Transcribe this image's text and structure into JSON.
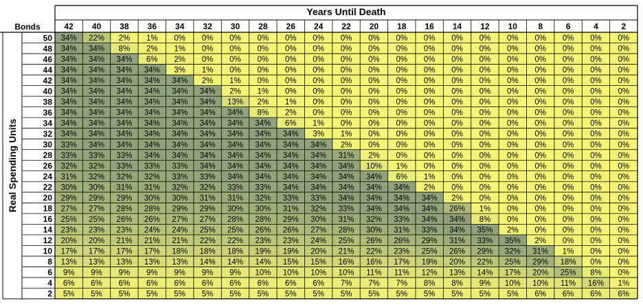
{
  "chart_data": {
    "type": "heatmap",
    "corner_label": "Bonds",
    "x_title": "Years Until Death",
    "y_title": "Real Spending Units",
    "x": [
      42,
      40,
      38,
      36,
      34,
      32,
      30,
      28,
      26,
      24,
      22,
      20,
      18,
      16,
      14,
      12,
      10,
      8,
      6,
      4,
      2
    ],
    "y": [
      50,
      48,
      46,
      44,
      42,
      40,
      38,
      36,
      34,
      32,
      30,
      28,
      26,
      24,
      22,
      20,
      18,
      16,
      14,
      12,
      10,
      8,
      6,
      4,
      2
    ],
    "value_suffix": "%",
    "values": [
      [
        34,
        22,
        2,
        1,
        0,
        0,
        0,
        0,
        0,
        0,
        0,
        0,
        0,
        0,
        0,
        0,
        0,
        0,
        0,
        0,
        0
      ],
      [
        34,
        34,
        8,
        2,
        1,
        0,
        0,
        0,
        0,
        0,
        0,
        0,
        0,
        0,
        0,
        0,
        0,
        0,
        0,
        0,
        0
      ],
      [
        34,
        34,
        34,
        6,
        2,
        0,
        0,
        0,
        0,
        0,
        0,
        0,
        0,
        0,
        0,
        0,
        0,
        0,
        0,
        0,
        0
      ],
      [
        34,
        34,
        34,
        34,
        3,
        1,
        0,
        0,
        0,
        0,
        0,
        0,
        0,
        0,
        0,
        0,
        0,
        0,
        0,
        0,
        0
      ],
      [
        34,
        34,
        34,
        34,
        34,
        2,
        1,
        0,
        0,
        0,
        0,
        0,
        0,
        0,
        0,
        0,
        0,
        0,
        0,
        0,
        0
      ],
      [
        34,
        34,
        34,
        34,
        34,
        34,
        2,
        1,
        0,
        0,
        0,
        0,
        0,
        0,
        0,
        0,
        0,
        0,
        0,
        0,
        0
      ],
      [
        34,
        34,
        34,
        34,
        34,
        34,
        13,
        2,
        1,
        0,
        0,
        0,
        0,
        0,
        0,
        0,
        0,
        0,
        0,
        0,
        0
      ],
      [
        34,
        34,
        34,
        34,
        34,
        34,
        34,
        8,
        2,
        0,
        0,
        0,
        0,
        0,
        0,
        0,
        0,
        0,
        0,
        0,
        0
      ],
      [
        34,
        34,
        34,
        34,
        34,
        34,
        34,
        34,
        6,
        1,
        0,
        0,
        0,
        0,
        0,
        0,
        0,
        0,
        0,
        0,
        0
      ],
      [
        34,
        34,
        34,
        34,
        34,
        34,
        34,
        34,
        34,
        3,
        1,
        0,
        0,
        0,
        0,
        0,
        0,
        0,
        0,
        0,
        0
      ],
      [
        33,
        34,
        34,
        34,
        34,
        34,
        34,
        34,
        34,
        34,
        2,
        0,
        0,
        0,
        0,
        0,
        0,
        0,
        0,
        0,
        0
      ],
      [
        33,
        33,
        33,
        34,
        34,
        34,
        34,
        34,
        34,
        34,
        31,
        2,
        0,
        0,
        0,
        0,
        0,
        0,
        0,
        0,
        0
      ],
      [
        32,
        32,
        33,
        33,
        33,
        34,
        34,
        34,
        34,
        34,
        34,
        10,
        1,
        0,
        0,
        0,
        0,
        0,
        0,
        0,
        0
      ],
      [
        31,
        32,
        32,
        32,
        33,
        33,
        34,
        34,
        34,
        34,
        34,
        34,
        6,
        1,
        0,
        0,
        0,
        0,
        0,
        0,
        0
      ],
      [
        30,
        30,
        31,
        31,
        32,
        32,
        33,
        33,
        34,
        34,
        34,
        34,
        34,
        2,
        0,
        0,
        0,
        0,
        0,
        0,
        0
      ],
      [
        29,
        29,
        29,
        30,
        30,
        31,
        31,
        32,
        33,
        33,
        34,
        34,
        34,
        34,
        2,
        0,
        0,
        0,
        0,
        0,
        0
      ],
      [
        27,
        27,
        28,
        28,
        29,
        29,
        30,
        30,
        31,
        32,
        33,
        34,
        34,
        34,
        26,
        1,
        0,
        0,
        0,
        0,
        0
      ],
      [
        25,
        25,
        26,
        26,
        27,
        27,
        28,
        28,
        29,
        30,
        31,
        32,
        33,
        34,
        34,
        8,
        0,
        0,
        0,
        0,
        0
      ],
      [
        23,
        23,
        23,
        24,
        24,
        25,
        25,
        26,
        26,
        27,
        28,
        30,
        31,
        33,
        34,
        35,
        2,
        0,
        0,
        0,
        0
      ],
      [
        20,
        20,
        21,
        21,
        21,
        22,
        22,
        23,
        23,
        24,
        25,
        26,
        28,
        29,
        31,
        33,
        35,
        2,
        0,
        0,
        0
      ],
      [
        17,
        17,
        17,
        17,
        18,
        18,
        18,
        19,
        19,
        20,
        21,
        22,
        23,
        25,
        26,
        29,
        32,
        31,
        1,
        0,
        0
      ],
      [
        13,
        13,
        13,
        13,
        13,
        14,
        14,
        14,
        15,
        15,
        16,
        16,
        17,
        19,
        20,
        22,
        25,
        29,
        18,
        0,
        0
      ],
      [
        9,
        9,
        9,
        9,
        9,
        9,
        9,
        10,
        10,
        10,
        10,
        11,
        11,
        12,
        13,
        14,
        17,
        20,
        25,
        8,
        0
      ],
      [
        6,
        6,
        6,
        6,
        6,
        6,
        6,
        6,
        6,
        6,
        7,
        7,
        7,
        8,
        8,
        9,
        10,
        10,
        11,
        16,
        1
      ],
      [
        5,
        5,
        5,
        5,
        5,
        5,
        5,
        5,
        5,
        5,
        5,
        5,
        5,
        5,
        5,
        5,
        5,
        6,
        6,
        6,
        6
      ]
    ],
    "colors": {
      "low": "#f4f574",
      "high": "#8fa279",
      "grid": "#000000",
      "text": "#000000",
      "background": "#ffffff"
    }
  }
}
